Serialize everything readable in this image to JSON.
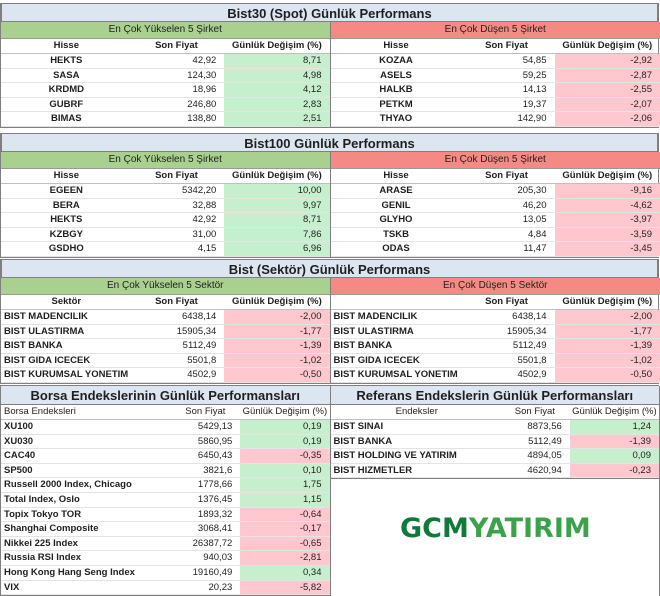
{
  "bist30": {
    "title": "Bist30 (Spot) Günlük Performans",
    "left": {
      "subtitle": "En Çok Yükselen 5 Şirket",
      "headers": [
        "Hisse",
        "Son Fiyat",
        "Günlük Değişim (%)"
      ],
      "rows": [
        [
          "HEKTS",
          "42,92",
          "8,71"
        ],
        [
          "SASA",
          "124,30",
          "4,98"
        ],
        [
          "KRDMD",
          "18,96",
          "4,12"
        ],
        [
          "GUBRF",
          "246,80",
          "2,83"
        ],
        [
          "BIMAS",
          "138,80",
          "2,51"
        ]
      ]
    },
    "right": {
      "subtitle": "En Çok Düşen 5 Şirket",
      "headers": [
        "Hisse",
        "Son Fiyat",
        "Günlük Değişim (%)"
      ],
      "rows": [
        [
          "KOZAA",
          "54,85",
          "-2,92"
        ],
        [
          "ASELS",
          "59,25",
          "-2,87"
        ],
        [
          "HALKB",
          "14,13",
          "-2,55"
        ],
        [
          "PETKM",
          "19,37",
          "-2,07"
        ],
        [
          "THYAO",
          "142,90",
          "-2,06"
        ]
      ]
    }
  },
  "bist100": {
    "title": "Bist100 Günlük Performans",
    "left": {
      "subtitle": "En Çok Yükselen 5 Şirket",
      "headers": [
        "Hisse",
        "Son Fiyat",
        "Günlük Değişim (%)"
      ],
      "rows": [
        [
          "EGEEN",
          "5342,20",
          "10,00"
        ],
        [
          "BERA",
          "32,88",
          "9,97"
        ],
        [
          "HEKTS",
          "42,92",
          "8,71"
        ],
        [
          "KZBGY",
          "31,00",
          "7,86"
        ],
        [
          "GSDHO",
          "4,15",
          "6,96"
        ]
      ]
    },
    "right": {
      "subtitle": "En Çok Düşen 5 Şirket",
      "headers": [
        "Hisse",
        "Son Fiyat",
        "Günlük Değişim (%)"
      ],
      "rows": [
        [
          "ARASE",
          "205,30",
          "-9,16"
        ],
        [
          "GENIL",
          "46,20",
          "-4,62"
        ],
        [
          "GLYHO",
          "13,05",
          "-3,97"
        ],
        [
          "TSKB",
          "4,84",
          "-3,59"
        ],
        [
          "ODAS",
          "11,47",
          "-3,45"
        ]
      ]
    }
  },
  "sektor": {
    "title": "Bist (Sektör) Günlük Performans",
    "left": {
      "subtitle": "En Çok Yükselen 5 Sektör",
      "headers": [
        "Sektör",
        "Son Fiyat",
        "Günlük Değişim (%)"
      ],
      "rows": [
        [
          "BIST MADENCILIK",
          "6438,14",
          "-2,00"
        ],
        [
          "BIST ULASTIRMA",
          "15905,34",
          "-1,77"
        ],
        [
          "BIST BANKA",
          "5112,49",
          "-1,39"
        ],
        [
          "BIST GIDA ICECEK",
          "5501,8",
          "-1,02"
        ],
        [
          "BIST KURUMSAL YONETIM",
          "4502,9",
          "-0,50"
        ]
      ]
    },
    "right": {
      "subtitle": "En Çok Düşen 5 Sektör",
      "headers": [
        "",
        "Son Fiyat",
        "Günlük Değişim (%)"
      ],
      "rows": [
        [
          "BIST MADENCILIK",
          "6438,14",
          "-2,00"
        ],
        [
          "BIST ULASTIRMA",
          "15905,34",
          "-1,77"
        ],
        [
          "BIST BANKA",
          "5112,49",
          "-1,39"
        ],
        [
          "BIST GIDA ICECEK",
          "5501,8",
          "-1,02"
        ],
        [
          "BIST KURUMSAL YONETIM",
          "4502,9",
          "-0,50"
        ]
      ]
    }
  },
  "borsa": {
    "title": "Borsa Endekslerinin Günlük Performansları",
    "headers": [
      "Borsa Endeksleri",
      "Son Fiyat",
      "Günlük Değişim (%)"
    ],
    "rows": [
      [
        "XU100",
        "5429,13",
        "0,19"
      ],
      [
        "XU030",
        "5860,95",
        "0,19"
      ],
      [
        "CAC40",
        "6450,43",
        "-0,35"
      ],
      [
        "SP500",
        "3821,6",
        "0,10"
      ],
      [
        "Russell 2000 Index, Chicago",
        "1778,66",
        "1,75"
      ],
      [
        "Total Index, Oslo",
        "1376,45",
        "1,15"
      ],
      [
        "Topix Tokyo TOR",
        "1893,32",
        "-0,64"
      ],
      [
        "Shanghai Composite",
        "3068,41",
        "-0,17"
      ],
      [
        "Nikkei 225 Index",
        "26387,72",
        "-0,65"
      ],
      [
        "Russia RSI Index",
        "940,03",
        "-2,81"
      ],
      [
        "Hong Kong Hang Seng Index",
        "19160,49",
        "0,34"
      ],
      [
        "VIX",
        "20,23",
        "-5,82"
      ]
    ]
  },
  "referans": {
    "title": "Referans Endekslerin  Günlük Performansları",
    "headers": [
      "Endeksler",
      "Son Fiyat",
      "Günlük Değişim (%)"
    ],
    "rows": [
      [
        "BIST SINAI",
        "8873,56",
        "1,24"
      ],
      [
        "BIST BANKA",
        "5112,49",
        "-1,39"
      ],
      [
        "BIST HOLDING VE YATIRIM",
        "4894,05",
        "0,09"
      ],
      [
        "BIST HIZMETLER",
        "4620,94",
        "-0,23"
      ]
    ]
  },
  "logo": {
    "part1": "GCM",
    "part2": "YATIRIM",
    "icon": "gcm-ring-logo-icon"
  },
  "colors": {
    "positive_bg": "#c6efce",
    "negative_bg": "#ffc7ce",
    "rise_header": "#a9d08e",
    "fall_header": "#f48a83",
    "title_bg": "#dce6f1",
    "brand_green": "#0f7a3a"
  }
}
